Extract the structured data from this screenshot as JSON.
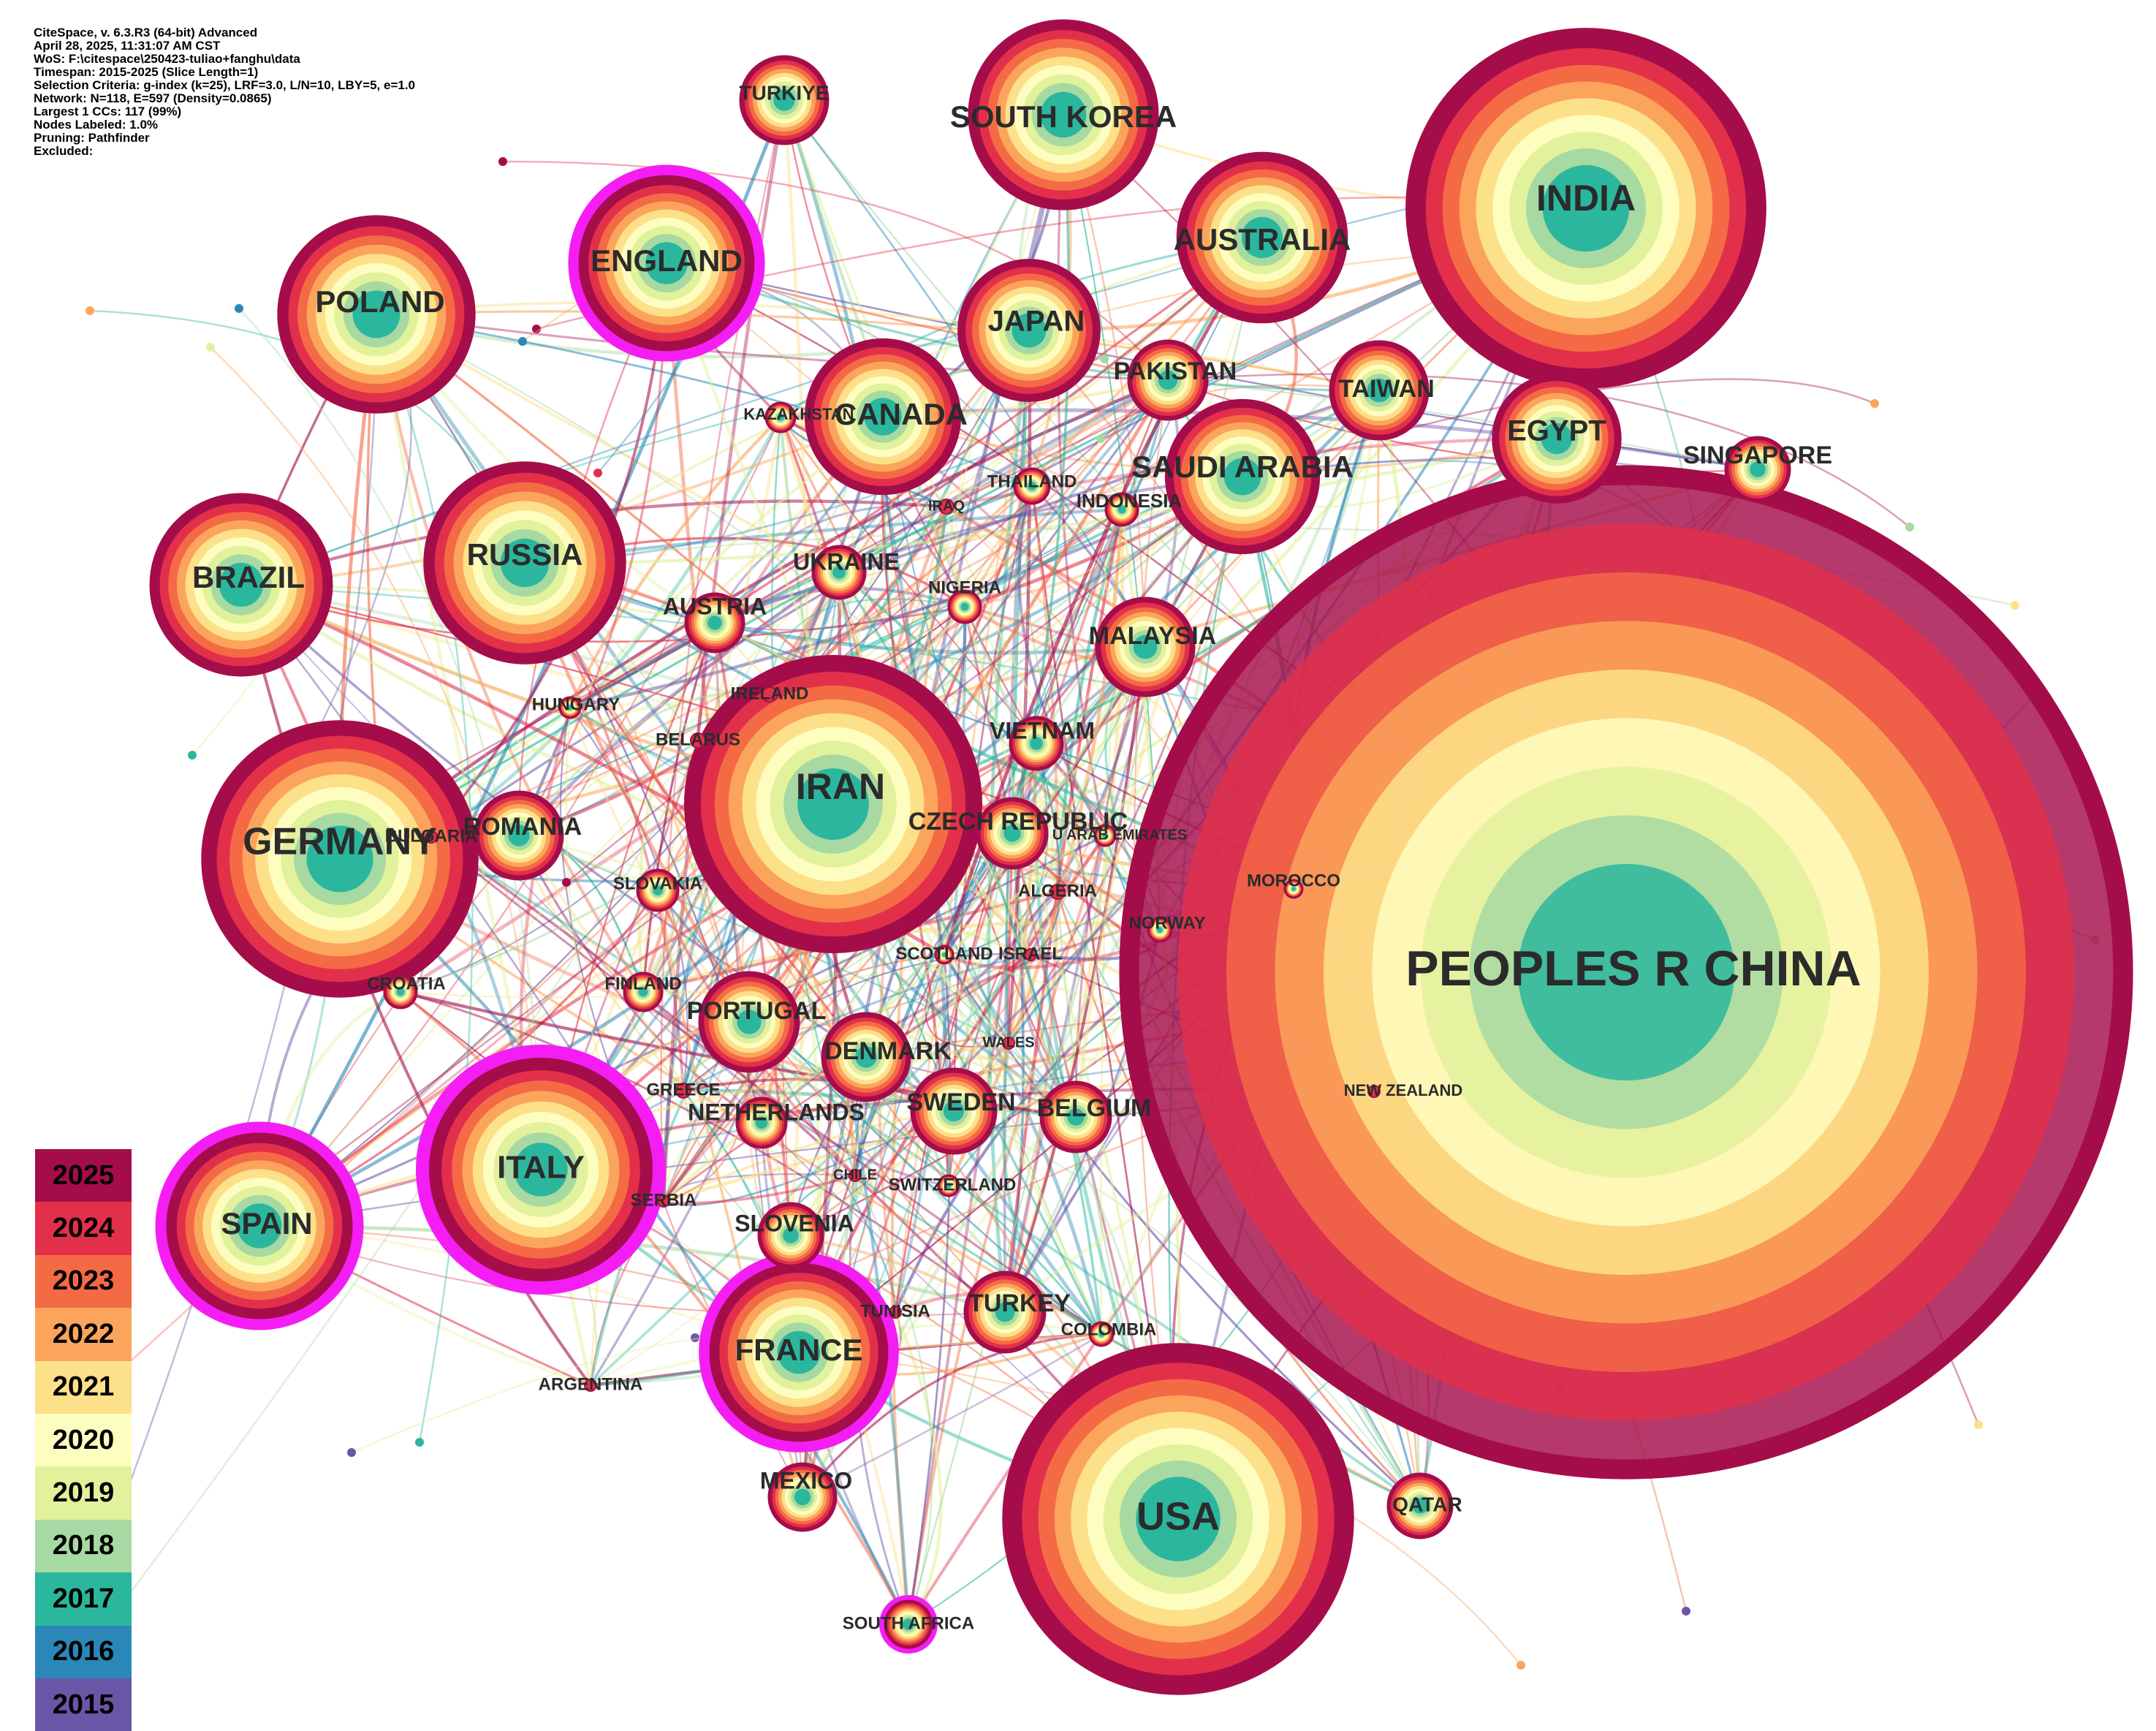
{
  "meta_lines": [
    "CiteSpace, v. 6.3.R3 (64-bit) Advanced",
    "April 28, 2025, 11:31:07 AM CST",
    "WoS: F:\\citespace\\250423-tuliao+fanghu\\data",
    "Timespan: 2015-2025 (Slice Length=1)",
    "Selection Criteria: g-index (k=25), LRF=3.0, L/N=10, LBY=5, e=1.0",
    "Network: N=118, E=597 (Density=0.0865)",
    "Largest 1 CCs: 117 (99%)",
    "Nodes Labeled: 1.0%",
    "Pruning: Pathfinder",
    "Excluded:"
  ],
  "legend": [
    {
      "year": "2025",
      "color": "#a50d4a"
    },
    {
      "year": "2024",
      "color": "#e2304a"
    },
    {
      "year": "2023",
      "color": "#f46a45"
    },
    {
      "year": "2022",
      "color": "#fba55c"
    },
    {
      "year": "2021",
      "color": "#fde08a"
    },
    {
      "year": "2020",
      "color": "#fefdc0"
    },
    {
      "year": "2019",
      "color": "#e2f19b"
    },
    {
      "year": "2018",
      "color": "#a7d9a2"
    },
    {
      "year": "2017",
      "color": "#2bb79d"
    },
    {
      "year": "2016",
      "color": "#2a87b8"
    },
    {
      "year": "2015",
      "color": "#6a56a6"
    }
  ],
  "nodes": [
    {
      "name": "PEOPLES R CHINA",
      "size": "xxl",
      "centrality_ring": false
    },
    {
      "name": "INDIA",
      "size": "xl",
      "centrality_ring": false
    },
    {
      "name": "USA",
      "size": "xl",
      "centrality_ring": false
    },
    {
      "name": "IRAN",
      "size": "xl",
      "centrality_ring": false
    },
    {
      "name": "GERMANY",
      "size": "l",
      "centrality_ring": false
    },
    {
      "name": "ITALY",
      "size": "l",
      "centrality_ring": true
    },
    {
      "name": "SPAIN",
      "size": "m",
      "centrality_ring": true
    },
    {
      "name": "FRANCE",
      "size": "m",
      "centrality_ring": true
    },
    {
      "name": "ENGLAND",
      "size": "m",
      "centrality_ring": true
    },
    {
      "name": "SOUTH KOREA",
      "size": "m",
      "centrality_ring": false
    },
    {
      "name": "AUSTRALIA",
      "size": "m",
      "centrality_ring": false
    },
    {
      "name": "POLAND",
      "size": "m",
      "centrality_ring": false
    },
    {
      "name": "RUSSIA",
      "size": "m",
      "centrality_ring": false
    },
    {
      "name": "BRAZIL",
      "size": "m",
      "centrality_ring": false
    },
    {
      "name": "CANADA",
      "size": "m",
      "centrality_ring": false
    },
    {
      "name": "SAUDI ARABIA",
      "size": "m",
      "centrality_ring": false
    },
    {
      "name": "JAPAN",
      "size": "s",
      "centrality_ring": false
    },
    {
      "name": "EGYPT",
      "size": "s",
      "centrality_ring": false
    },
    {
      "name": "TAIWAN",
      "size": "s",
      "centrality_ring": false
    },
    {
      "name": "PAKISTAN",
      "size": "s",
      "centrality_ring": false
    },
    {
      "name": "TURKIYE",
      "size": "s",
      "centrality_ring": false
    },
    {
      "name": "MALAYSIA",
      "size": "s",
      "centrality_ring": false
    },
    {
      "name": "SINGAPORE",
      "size": "xs",
      "centrality_ring": false
    },
    {
      "name": "CZECH REPUBLIC",
      "size": "s",
      "centrality_ring": false
    },
    {
      "name": "ROMANIA",
      "size": "s",
      "centrality_ring": false
    },
    {
      "name": "PORTUGAL",
      "size": "s",
      "centrality_ring": false
    },
    {
      "name": "DENMARK",
      "size": "s",
      "centrality_ring": false
    },
    {
      "name": "SWEDEN",
      "size": "s",
      "centrality_ring": false
    },
    {
      "name": "BELGIUM",
      "size": "s",
      "centrality_ring": false
    },
    {
      "name": "TURKEY",
      "size": "s",
      "centrality_ring": false
    },
    {
      "name": "MEXICO",
      "size": "xs",
      "centrality_ring": false
    },
    {
      "name": "QATAR",
      "size": "xs",
      "centrality_ring": false
    },
    {
      "name": "AUSTRIA",
      "size": "xs",
      "centrality_ring": false
    },
    {
      "name": "UKRAINE",
      "size": "xs",
      "centrality_ring": false
    },
    {
      "name": "VIETNAM",
      "size": "xs",
      "centrality_ring": false
    },
    {
      "name": "SLOVENIA",
      "size": "xs",
      "centrality_ring": false
    },
    {
      "name": "NETHERLANDS",
      "size": "xs",
      "centrality_ring": false
    },
    {
      "name": "NIGERIA",
      "size": "tiny",
      "centrality_ring": false
    },
    {
      "name": "THAILAND",
      "size": "tiny",
      "centrality_ring": false
    },
    {
      "name": "INDONESIA",
      "size": "tiny",
      "centrality_ring": false
    },
    {
      "name": "IRAQ",
      "size": "tiny",
      "centrality_ring": false
    },
    {
      "name": "KAZAKHSTAN",
      "size": "tiny",
      "centrality_ring": false
    },
    {
      "name": "HUNGARY",
      "size": "tiny",
      "centrality_ring": false
    },
    {
      "name": "IRELAND",
      "size": "tiny",
      "centrality_ring": false
    },
    {
      "name": "BELARUS",
      "size": "tiny",
      "centrality_ring": false
    },
    {
      "name": "BULGARIA",
      "size": "tiny",
      "centrality_ring": false
    },
    {
      "name": "SLOVAKIA",
      "size": "tiny",
      "centrality_ring": false
    },
    {
      "name": "U ARAB EMIRATES",
      "size": "tiny",
      "centrality_ring": false
    },
    {
      "name": "ALGERIA",
      "size": "tiny",
      "centrality_ring": false
    },
    {
      "name": "NORWAY",
      "size": "tiny",
      "centrality_ring": false
    },
    {
      "name": "MOROCCO",
      "size": "tiny",
      "centrality_ring": false
    },
    {
      "name": "SCOTLAND",
      "size": "tiny",
      "centrality_ring": false
    },
    {
      "name": "ISRAEL",
      "size": "tiny",
      "centrality_ring": false
    },
    {
      "name": "CROATIA",
      "size": "tiny",
      "centrality_ring": false
    },
    {
      "name": "FINLAND",
      "size": "tiny",
      "centrality_ring": false
    },
    {
      "name": "WALES",
      "size": "tiny",
      "centrality_ring": false
    },
    {
      "name": "GREECE",
      "size": "tiny",
      "centrality_ring": false
    },
    {
      "name": "CHILE",
      "size": "tiny",
      "centrality_ring": false
    },
    {
      "name": "SWITZERLAND",
      "size": "tiny",
      "centrality_ring": false
    },
    {
      "name": "SERBIA",
      "size": "tiny",
      "centrality_ring": false
    },
    {
      "name": "TUNISIA",
      "size": "tiny",
      "centrality_ring": false
    },
    {
      "name": "COLOMBIA",
      "size": "tiny",
      "centrality_ring": false
    },
    {
      "name": "ARGENTINA",
      "size": "tiny",
      "centrality_ring": false
    },
    {
      "name": "NEW ZEALAND",
      "size": "tiny",
      "centrality_ring": false
    },
    {
      "name": "SOUTH AFRICA",
      "size": "tiny",
      "centrality_ring": true
    }
  ]
}
